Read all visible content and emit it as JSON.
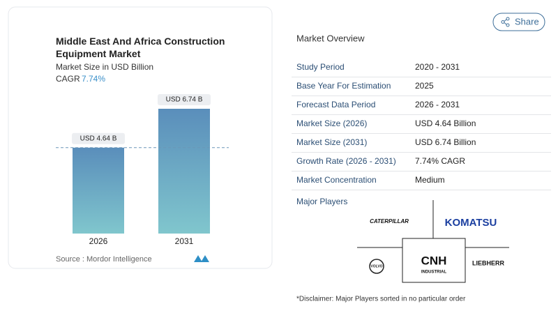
{
  "chart_data": {
    "type": "bar",
    "title": "Middle East And Africa Construction Equipment Market",
    "subtitle": "Market Size in USD Billion",
    "cagr_label": "CAGR",
    "cagr": "7.74%",
    "categories": [
      "2026",
      "2031"
    ],
    "values": [
      4.64,
      6.74
    ],
    "value_labels": [
      "USD 4.64 B",
      "USD 6.74 B"
    ],
    "source": "Source : Mordor Intelligence"
  },
  "share": "Share",
  "overview": {
    "title": "Market Overview",
    "rows": [
      [
        "Study Period",
        "2020 - 2031"
      ],
      [
        "Base Year For Estimation",
        "2025"
      ],
      [
        "Forecast Data Period",
        "2026 - 2031"
      ],
      [
        "Market Size (2026)",
        "USD 4.64 Billion"
      ],
      [
        "Market Size (2031)",
        "USD 6.74 Billion"
      ],
      [
        "Growth Rate (2026 - 2031)",
        "7.74% CAGR"
      ],
      [
        "Market Concentration",
        "Medium"
      ]
    ]
  },
  "players": {
    "title": "Major Players",
    "logos": [
      "CATERPILLAR",
      "KOMATSU",
      "VOLVO",
      "CNH",
      "INDUSTRIAL",
      "LIEBHERR"
    ]
  },
  "disclaimer": "*Disclaimer: Major Players sorted in no particular order"
}
